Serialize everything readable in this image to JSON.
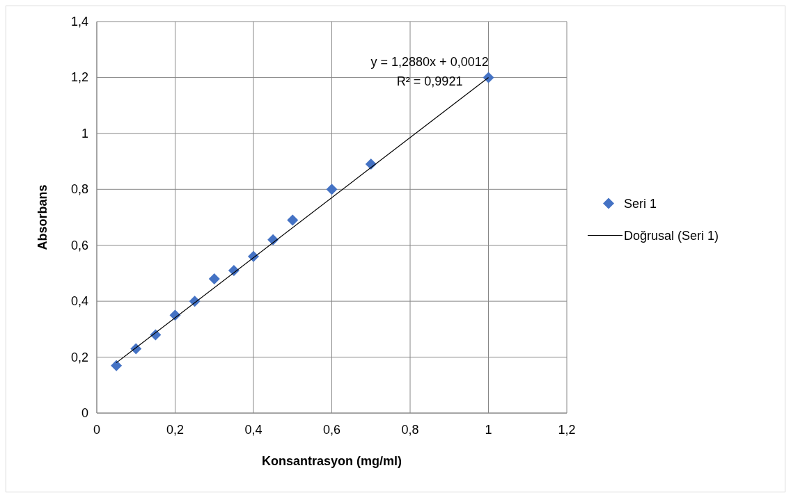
{
  "chart_data": {
    "type": "scatter",
    "xlabel": "Konsantrasyon (mg/ml)",
    "ylabel": "Absorbans",
    "xlim": [
      0,
      1.2
    ],
    "xticks": [
      0,
      {
        "value": 0.2,
        "label": "0,2"
      },
      {
        "value": 0.4,
        "label": "0,4"
      },
      {
        "value": 0.6,
        "label": "0,6"
      },
      {
        "value": 0.8,
        "label": "0,8"
      },
      1,
      {
        "value": 1.2,
        "label": "1,2"
      }
    ],
    "ylim": [
      0,
      1.4
    ],
    "yticks": [
      0,
      {
        "value": 0.2,
        "label": "0,2"
      },
      {
        "value": 0.4,
        "label": "0,4"
      },
      {
        "value": 0.6,
        "label": "0,6"
      },
      {
        "value": 0.8,
        "label": "0,8"
      },
      1,
      {
        "value": 1.2,
        "label": "1,2"
      },
      {
        "value": 1.4,
        "label": "1,4"
      }
    ],
    "grid": true,
    "legend": "right",
    "annotations": [
      "y = 1,2880x + 0,0012",
      "R² = 0,9921"
    ],
    "series": [
      {
        "name": "Seri 1",
        "color": "#4472c4",
        "marker": "diamond",
        "x": [
          0.05,
          0.1,
          0.15,
          0.2,
          0.25,
          0.3,
          0.35,
          0.4,
          0.45,
          0.5,
          0.6,
          0.7,
          1.0
        ],
        "values": [
          0.17,
          0.23,
          0.28,
          0.35,
          0.4,
          0.48,
          0.51,
          0.56,
          0.62,
          0.69,
          0.8,
          0.89,
          1.2
        ]
      },
      {
        "name": "Doğrusal (Seri 1)",
        "type": "line",
        "color": "#000000",
        "line_style": "solid",
        "x": [
          0.05,
          1.0
        ],
        "values": [
          0.18,
          1.2
        ]
      }
    ]
  }
}
